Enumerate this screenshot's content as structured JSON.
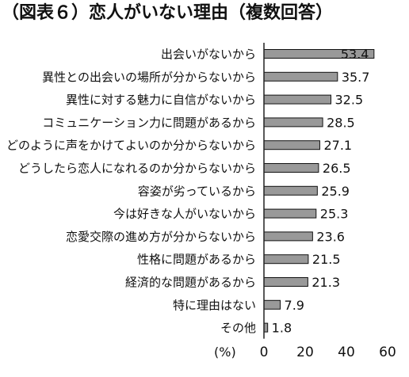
{
  "chart_data": {
    "type": "bar",
    "orientation": "horizontal",
    "title": "（図表６）恋人がいない理由（複数回答）",
    "unit": "(%)",
    "xlim": [
      0,
      60
    ],
    "ticks": [
      "0",
      "20",
      "40",
      "60"
    ],
    "tick_values": [
      0,
      20,
      40,
      60
    ],
    "grid": false,
    "bar_color": "#999999",
    "categories": [
      "出会いがないから",
      "異性との出会いの場所が分からないから",
      "異性に対する魅力に自信がないから",
      "コミュニケーション力に問題があるから",
      "どのように声をかけてよいのか分からないから",
      "どうしたら恋人になれるのか分からないから",
      "容姿が劣っているから",
      "今は好きな人がいないから",
      "恋愛交際の進め方が分からないから",
      "性格に問題があるから",
      "経済的な問題があるから",
      "特に理由はない",
      "その他"
    ],
    "values": [
      53.4,
      35.7,
      32.5,
      28.5,
      27.1,
      26.5,
      25.9,
      25.3,
      23.6,
      21.5,
      21.3,
      7.9,
      1.8
    ],
    "value_labels": [
      "53.4",
      "35.7",
      "32.5",
      "28.5",
      "27.1",
      "26.5",
      "25.9",
      "25.3",
      "23.6",
      "21.5",
      "21.3",
      "7.9",
      "1.8"
    ]
  }
}
